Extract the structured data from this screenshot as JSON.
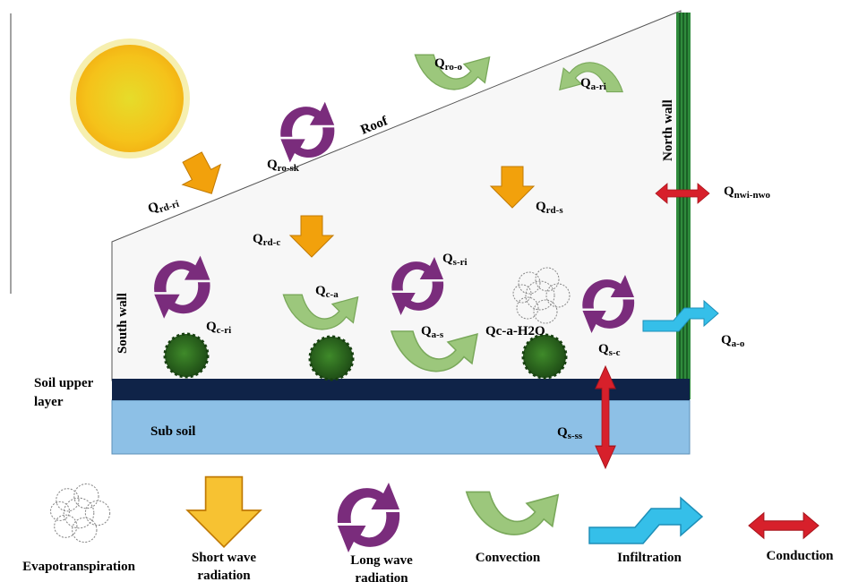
{
  "fluxes": [
    {
      "main": "Q",
      "sub": "ro-o"
    },
    {
      "main": "Q",
      "sub": "a-ri"
    },
    {
      "main": "Q",
      "sub": "ro-sk"
    },
    {
      "main": "Q",
      "sub": "rd-ri"
    },
    {
      "main": "Q",
      "sub": "rd-c"
    },
    {
      "main": "Q",
      "sub": "rd-s"
    },
    {
      "main": "Q",
      "sub": "nwi-nwo"
    },
    {
      "main": "Q",
      "sub": "s-ri"
    },
    {
      "main": "Q",
      "sub": "c-a"
    },
    {
      "main": "Q",
      "sub": "c-ri"
    },
    {
      "main": "Q",
      "sub": "a-s"
    },
    {
      "main": "Qc-a-H2O"
    },
    {
      "main": "Q",
      "sub": "s-c"
    },
    {
      "main": "Q",
      "sub": "a-o"
    },
    {
      "main": "Q",
      "sub": "s-ss"
    }
  ],
  "structure": {
    "roof": "Roof",
    "north_wall": "North wall",
    "south_wall": "South wall",
    "soil_upper_layer": [
      "Soil upper",
      "layer"
    ],
    "sub_soil": "Sub soil"
  },
  "legend": [
    {
      "lines": [
        "Evapotranspiration"
      ]
    },
    {
      "lines": [
        "Short wave",
        "radiation"
      ]
    },
    {
      "lines": [
        "Long wave",
        "radiation"
      ]
    },
    {
      "lines": [
        "Convection"
      ]
    },
    {
      "lines": [
        "Infiltration"
      ]
    },
    {
      "lines": [
        "Conduction"
      ]
    }
  ]
}
